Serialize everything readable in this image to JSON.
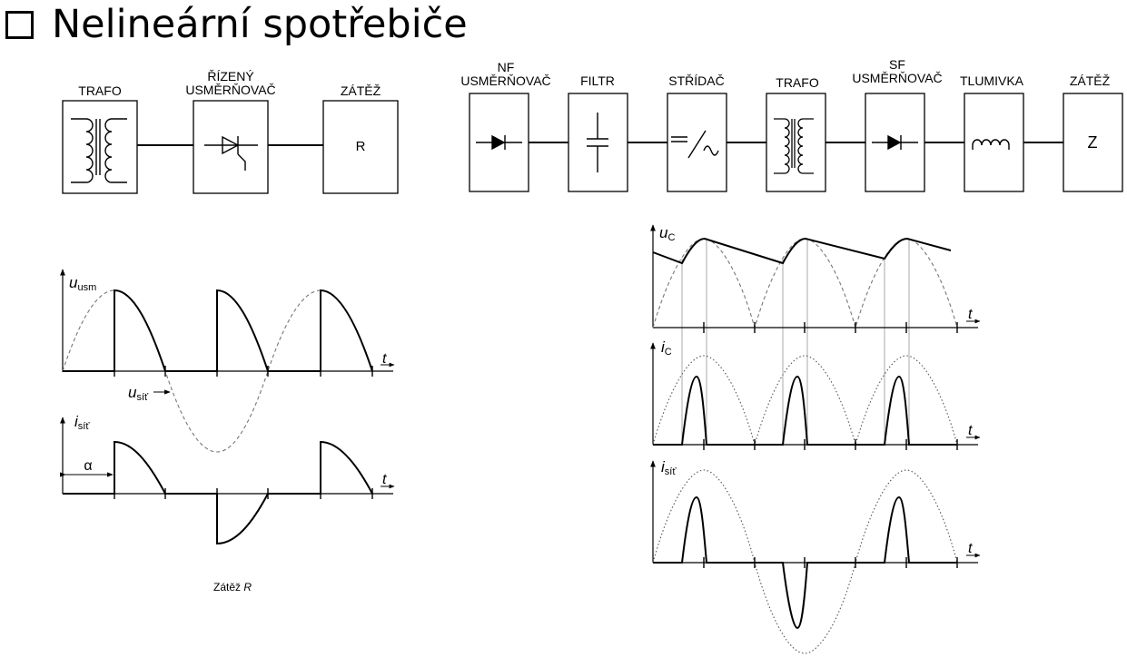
{
  "title": "Nelineární spotřebiče",
  "diagram_left": {
    "blocks": [
      {
        "label": "TRAFO"
      },
      {
        "label": "ŘÍZENÝ\nUSMĚRŇOVAČ"
      },
      {
        "label": "ZÁTĚŽ",
        "symbol_text": "R"
      }
    ],
    "caption": "Zátěž R",
    "waveforms": {
      "voltage_label": "u",
      "voltage_sub": "usm",
      "mains_label": "u",
      "mains_sub": "síť",
      "current_label": "i",
      "current_sub": "síť",
      "alpha_label": "α",
      "time_label": "t"
    }
  },
  "diagram_right": {
    "blocks": [
      {
        "label": "NF\nUSMĚRŇOVAČ"
      },
      {
        "label": "FILTR"
      },
      {
        "label": "STŘÍDAČ"
      },
      {
        "label": "TRAFO"
      },
      {
        "label": "SF\nUSMĚRŇOVAČ"
      },
      {
        "label": "TLUMIVKA"
      },
      {
        "label": "ZÁTĚŽ",
        "symbol_text": "Z"
      }
    ],
    "waveforms": {
      "uc_label": "u",
      "uc_sub": "C",
      "ic_label": "i",
      "ic_sub": "C",
      "isit_label": "i",
      "isit_sub": "síť",
      "time_label": "t"
    }
  }
}
